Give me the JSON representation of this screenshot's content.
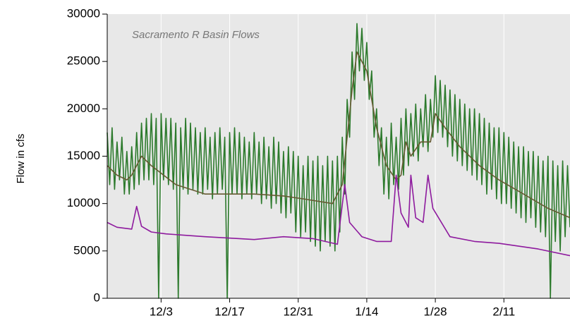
{
  "chart_data": {
    "type": "line",
    "title": "Sacramento R Basin Flows",
    "y_label": "Flow in cfs",
    "xlim": [
      0,
      94.5
    ],
    "xticks": [
      {
        "value": 11,
        "label": "12/3"
      },
      {
        "value": 25,
        "label": "12/17"
      },
      {
        "value": 39,
        "label": "12/31"
      },
      {
        "value": 53,
        "label": "1/14"
      },
      {
        "value": 67,
        "label": "1/28"
      },
      {
        "value": 81,
        "label": "2/11"
      }
    ],
    "ylim": [
      0,
      30000
    ],
    "yticks": [
      0,
      5000,
      10000,
      15000,
      20000,
      25000,
      30000
    ],
    "grid": "x",
    "series": [
      {
        "color": "#2c7a2c",
        "x": [
          0,
          0.5,
          1,
          1.5,
          2,
          2.5,
          3,
          3.5,
          4,
          4.5,
          5,
          5.5,
          6,
          6.5,
          7,
          7.5,
          8,
          8.5,
          9,
          9.5,
          10,
          10.5,
          11,
          11.5,
          12,
          12.5,
          13,
          13.5,
          14,
          14.5,
          15,
          15.5,
          16,
          16.5,
          17,
          17.5,
          18,
          18.5,
          19,
          19.5,
          20,
          20.5,
          21,
          21.5,
          22,
          22.5,
          23,
          23.5,
          24,
          24.5,
          25,
          25.5,
          26,
          26.5,
          27,
          27.5,
          28,
          28.5,
          29,
          29.5,
          30,
          30.5,
          31,
          31.5,
          32,
          32.5,
          33,
          33.5,
          34,
          34.5,
          35,
          35.5,
          36,
          36.5,
          37,
          37.5,
          38,
          38.5,
          39,
          39.5,
          40,
          40.5,
          41,
          41.5,
          42,
          42.5,
          43,
          43.5,
          44,
          44.5,
          45,
          45.5,
          46,
          46.5,
          47,
          47.5,
          48,
          48.5,
          49,
          49.5,
          50,
          50.5,
          51,
          51.5,
          52,
          52.5,
          53,
          53.5,
          54,
          54.5,
          55,
          55.5,
          56,
          56.5,
          57,
          57.5,
          58,
          58.5,
          59,
          59.5,
          60,
          60.5,
          61,
          61.5,
          62,
          62.5,
          63,
          63.5,
          64,
          64.5,
          65,
          65.5,
          66,
          66.5,
          67,
          67.5,
          68,
          68.5,
          69,
          69.5,
          70,
          70.5,
          71,
          71.5,
          72,
          72.5,
          73,
          73.5,
          74,
          74.5,
          75,
          75.5,
          76,
          76.5,
          77,
          77.5,
          78,
          78.5,
          79,
          79.5,
          80,
          80.5,
          81,
          81.5,
          82,
          82.5,
          83,
          83.5,
          84,
          84.5,
          85,
          85.5,
          86,
          86.5,
          87,
          87.5,
          88,
          88.5,
          89,
          89.5,
          90,
          90.5,
          91,
          91.5,
          92,
          92.5,
          93,
          93.5,
          94,
          94.5
        ],
        "values": [
          17500,
          12000,
          18000,
          11500,
          16500,
          12500,
          17000,
          11000,
          15500,
          11000,
          16000,
          11500,
          17500,
          12000,
          18500,
          12500,
          19000,
          12500,
          19500,
          12000,
          19000,
          0,
          19500,
          12500,
          19000,
          12000,
          19000,
          11500,
          18500,
          0,
          18000,
          11500,
          19000,
          11000,
          18500,
          11500,
          18000,
          11000,
          17500,
          11000,
          18000,
          11500,
          17000,
          10500,
          17500,
          11000,
          18000,
          11500,
          17000,
          0,
          17500,
          11000,
          18000,
          11000,
          17500,
          10500,
          17000,
          11000,
          16500,
          10500,
          17500,
          11000,
          16500,
          10000,
          17000,
          10500,
          16000,
          9500,
          17000,
          10000,
          16500,
          9000,
          15500,
          8500,
          16000,
          9000,
          15500,
          7000,
          15000,
          6500,
          14000,
          7000,
          15000,
          6000,
          14500,
          5500,
          15000,
          5000,
          14000,
          6000,
          15000,
          5500,
          14500,
          5000,
          15000,
          7000,
          17000,
          11000,
          21000,
          17000,
          26000,
          21000,
          29000,
          24000,
          28500,
          23000,
          27000,
          21000,
          24000,
          17000,
          20000,
          14000,
          18000,
          11000,
          17000,
          10500,
          18500,
          12000,
          17000,
          11500,
          19000,
          13000,
          20000,
          14000,
          19500,
          15000,
          20500,
          14500,
          20000,
          16000,
          21500,
          15500,
          21000,
          17000,
          23500,
          17500,
          23000,
          17000,
          22500,
          16000,
          22000,
          15000,
          21500,
          14500,
          21000,
          14000,
          20500,
          13500,
          20000,
          13000,
          20000,
          12500,
          19500,
          12000,
          19000,
          11000,
          18500,
          11500,
          18000,
          10500,
          18000,
          10000,
          17500,
          10000,
          17000,
          9500,
          16500,
          9000,
          16000,
          8500,
          16000,
          8000,
          15500,
          8500,
          15500,
          7500,
          15000,
          7000,
          14500,
          6500,
          15000,
          0,
          14500,
          6000,
          14000,
          5000,
          14500,
          6500,
          14000,
          7500
        ]
      },
      {
        "color": "#655a32",
        "x": [
          0,
          2,
          4,
          5,
          7,
          9,
          14,
          20,
          30,
          36,
          40,
          46,
          48,
          49,
          50,
          51,
          53,
          55,
          57,
          59,
          60,
          61,
          62,
          64,
          66,
          67,
          69,
          72,
          76,
          80,
          85,
          90,
          94.5
        ],
        "values": [
          14000,
          13000,
          12500,
          13000,
          15000,
          14000,
          12000,
          11000,
          11000,
          10800,
          10500,
          10000,
          12000,
          17000,
          22000,
          26000,
          24000,
          18000,
          14000,
          12500,
          13000,
          16500,
          15000,
          16500,
          16500,
          19500,
          18000,
          16000,
          14000,
          12500,
          11000,
          9500,
          8500
        ]
      },
      {
        "color": "#8e1a9e",
        "x": [
          0,
          2,
          5,
          6,
          7,
          9,
          12,
          20,
          27,
          30,
          36,
          42,
          47,
          48.5,
          49.5,
          52,
          55,
          58,
          59,
          60,
          61.5,
          62,
          63,
          64.5,
          65.5,
          66.5,
          70,
          75,
          80,
          88,
          94.5
        ],
        "values": [
          8000,
          7500,
          7300,
          9700,
          7600,
          7000,
          6800,
          6500,
          6300,
          6200,
          6500,
          6300,
          5700,
          12000,
          8000,
          6500,
          6000,
          6000,
          13000,
          9000,
          7500,
          13000,
          8500,
          8000,
          13000,
          9500,
          6500,
          6000,
          5800,
          5200,
          4500
        ]
      }
    ]
  }
}
